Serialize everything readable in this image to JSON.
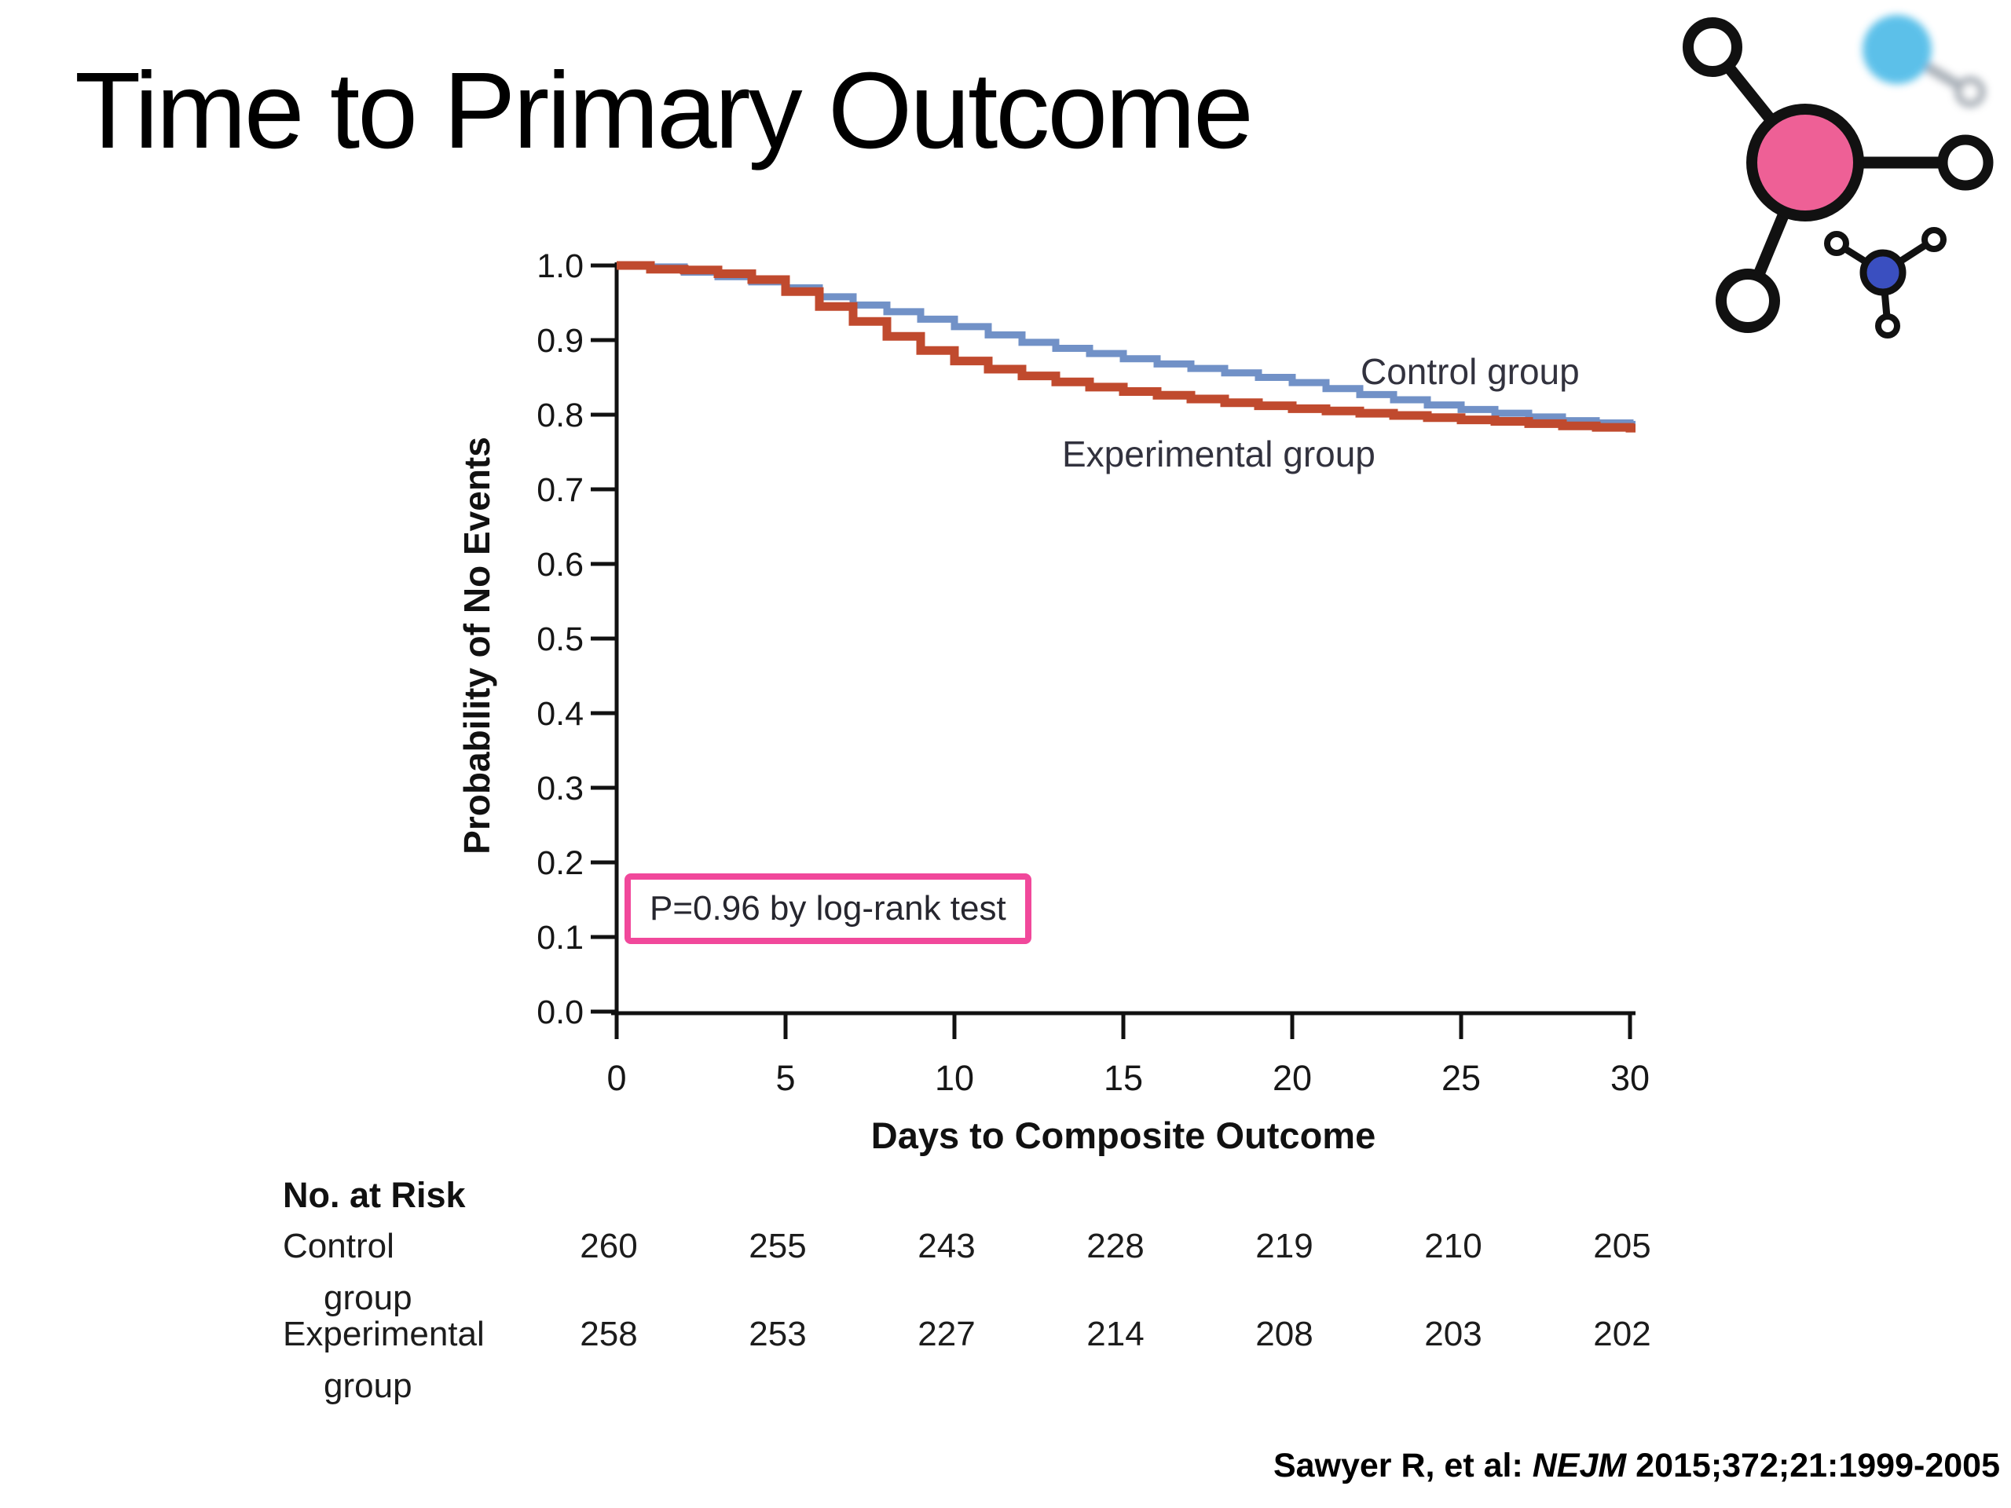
{
  "slide": {
    "title": "Time to Primary Outcome",
    "citation_prefix": "Sawyer R, et al: ",
    "citation_journal": "NEJM",
    "citation_suffix": " 2015;372;21:1999-2005"
  },
  "logo": {
    "name": "molecule-logo",
    "pink": "#ee6096",
    "cyan": "#41b6e6",
    "small_blue": "#3a4fc0",
    "gray": "#9aa2ab",
    "outline": "#111111"
  },
  "chart_data": {
    "type": "line",
    "subtype": "kaplan-meier-step",
    "title": "",
    "xlabel": "Days to Composite Outcome",
    "ylabel": "Probability of No Events",
    "xlim": [
      0,
      30
    ],
    "ylim": [
      0.0,
      1.0
    ],
    "grid": false,
    "legend_position": "inline-labels",
    "annotation": "P=0.96 by log-rank test",
    "annotation_box_color": "#f1489b",
    "x_ticks": [
      "0",
      "5",
      "10",
      "15",
      "20",
      "25",
      "30"
    ],
    "y_ticks": [
      "1.0",
      "0.9",
      "0.8",
      "0.7",
      "0.6",
      "0.5",
      "0.4",
      "0.3",
      "0.2",
      "0.1",
      "0.0"
    ],
    "series": [
      {
        "name": "Control group",
        "color": "#7191c7",
        "x": [
          0,
          1,
          2,
          3,
          4,
          5,
          6,
          7,
          8,
          9,
          10,
          11,
          12,
          13,
          14,
          15,
          16,
          17,
          18,
          19,
          20,
          21,
          22,
          23,
          24,
          25,
          26,
          27,
          28,
          29,
          30
        ],
        "y": [
          1.0,
          0.998,
          0.991,
          0.985,
          0.978,
          0.97,
          0.958,
          0.947,
          0.938,
          0.928,
          0.918,
          0.907,
          0.897,
          0.889,
          0.882,
          0.875,
          0.868,
          0.862,
          0.856,
          0.85,
          0.843,
          0.835,
          0.827,
          0.82,
          0.813,
          0.807,
          0.802,
          0.797,
          0.792,
          0.789,
          0.787
        ]
      },
      {
        "name": "Experimental group",
        "color": "#c04a2e",
        "x": [
          0,
          1,
          2,
          3,
          4,
          5,
          6,
          7,
          8,
          9,
          10,
          11,
          12,
          13,
          14,
          15,
          16,
          17,
          18,
          19,
          20,
          21,
          22,
          23,
          24,
          25,
          26,
          27,
          28,
          29,
          30
        ],
        "y": [
          1.0,
          0.995,
          0.994,
          0.989,
          0.981,
          0.965,
          0.945,
          0.925,
          0.905,
          0.886,
          0.872,
          0.861,
          0.852,
          0.844,
          0.837,
          0.831,
          0.826,
          0.821,
          0.816,
          0.812,
          0.808,
          0.805,
          0.802,
          0.799,
          0.796,
          0.793,
          0.791,
          0.788,
          0.785,
          0.783,
          0.782
        ]
      }
    ]
  },
  "risk_table": {
    "heading": "No. at Risk",
    "days": [
      0,
      5,
      10,
      15,
      20,
      25,
      30
    ],
    "rows": [
      {
        "label_line1": "Control",
        "label_line2": "group",
        "values": [
          "260",
          "255",
          "243",
          "228",
          "219",
          "210",
          "205"
        ]
      },
      {
        "label_line1": "Experimental",
        "label_line2": "group",
        "values": [
          "258",
          "253",
          "227",
          "214",
          "208",
          "203",
          "202"
        ]
      }
    ]
  }
}
